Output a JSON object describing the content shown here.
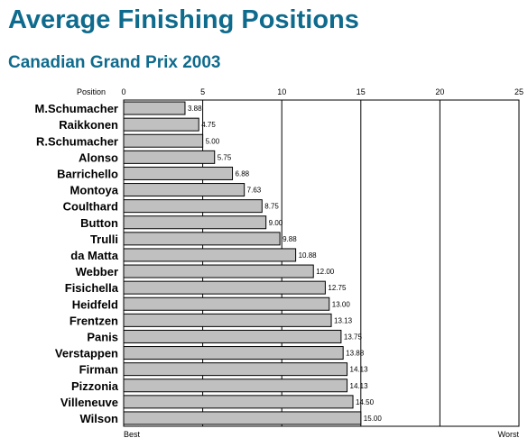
{
  "chart_data": {
    "type": "bar",
    "orientation": "horizontal",
    "title": "Average Finishing Positions",
    "subtitle": "Canadian Grand Prix 2003",
    "axis_label": "Position",
    "axis_min_label": "Best",
    "axis_max_label": "Worst",
    "xlim": [
      0,
      25
    ],
    "ticks": [
      0,
      5,
      10,
      15,
      20,
      25
    ],
    "grid": true,
    "categories": [
      "M.Schumacher",
      "Raikkonen",
      "R.Schumacher",
      "Alonso",
      "Barrichello",
      "Montoya",
      "Coulthard",
      "Button",
      "Trulli",
      "da Matta",
      "Webber",
      "Fisichella",
      "Heidfeld",
      "Frentzen",
      "Panis",
      "Verstappen",
      "Firman",
      "Pizzonia",
      "Villeneuve",
      "Wilson"
    ],
    "values": [
      3.88,
      4.75,
      5.0,
      5.75,
      6.88,
      7.63,
      8.75,
      9.0,
      9.88,
      10.88,
      12.0,
      12.75,
      13.0,
      13.13,
      13.75,
      13.88,
      14.13,
      14.13,
      14.5,
      15.0
    ],
    "value_labels": [
      "3.88",
      "4.75",
      "5.00",
      "5.75",
      "6.88",
      "7.63",
      "8.75",
      "9.00",
      "9.88",
      "10.88",
      "12.00",
      "12.75",
      "13.00",
      "13.13",
      "13.75",
      "13.88",
      "14.13",
      "14.13",
      "14.50",
      "15.00"
    ],
    "colors": {
      "title": "#0f6b8d",
      "bar_fill": "#c0c0c0",
      "bar_stroke": "#000000"
    }
  }
}
